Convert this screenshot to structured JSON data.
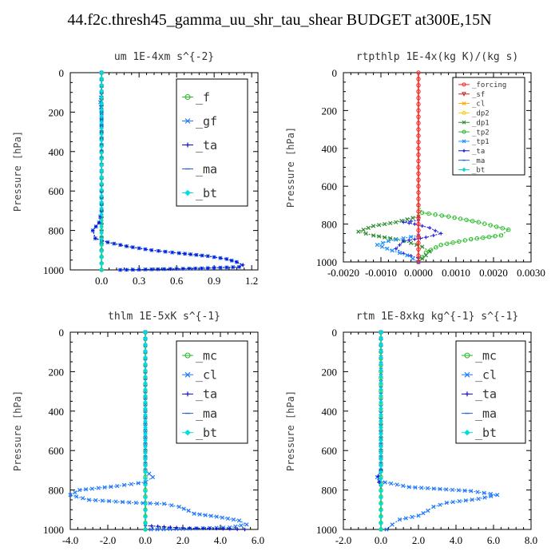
{
  "title": "44.f2c.thresh45_gamma_uu_shr_tau_shear  BUDGET at300E,15N",
  "chart_data": [
    {
      "type": "line",
      "title": "um   1E-4xm s^{-2}",
      "ylabel": "Pressure [hPa]",
      "xlim": [
        -0.25,
        1.25
      ],
      "ylim": [
        1000,
        0
      ],
      "xticks": [
        {
          "v": 0,
          "t": "0.0"
        },
        {
          "v": 0.3,
          "t": "0.3"
        },
        {
          "v": 0.6,
          "t": "0.6"
        },
        {
          "v": 0.9,
          "t": "0.9"
        },
        {
          "v": 1.2,
          "t": "1.2"
        }
      ],
      "yticks": [
        {
          "v": 0,
          "t": "0"
        },
        {
          "v": 200,
          "t": "200"
        },
        {
          "v": 400,
          "t": "400"
        },
        {
          "v": 600,
          "t": "600"
        },
        {
          "v": 800,
          "t": "800"
        },
        {
          "v": 1000,
          "t": "1000"
        }
      ],
      "legend_position": "top-right",
      "legend": [
        "_f",
        "_gf",
        "_ta",
        "_ma",
        "_bt"
      ],
      "series": [
        {
          "name": "_f",
          "color": "#22bb22",
          "points": [
            [
              0,
              0
            ],
            [
              0,
              100
            ],
            [
              0,
              200
            ],
            [
              0,
              300
            ],
            [
              0,
              400
            ],
            [
              0,
              500
            ],
            [
              0,
              600
            ],
            [
              0,
              700
            ],
            [
              0,
              800
            ],
            [
              0,
              900
            ],
            [
              0,
              1000
            ]
          ]
        },
        {
          "name": "_gf",
          "color": "#1e78ff",
          "points": [
            [
              0,
              0
            ],
            [
              0,
              100
            ],
            [
              -0.01,
              150
            ],
            [
              0,
              200
            ],
            [
              0,
              400
            ],
            [
              0,
              600
            ],
            [
              0,
              700
            ],
            [
              -0.02,
              760
            ],
            [
              -0.07,
              800
            ],
            [
              -0.05,
              840
            ],
            [
              0.05,
              860
            ],
            [
              0.2,
              880
            ],
            [
              0.4,
              900
            ],
            [
              0.62,
              915
            ],
            [
              0.85,
              930
            ],
            [
              1.0,
              945
            ],
            [
              1.08,
              960
            ],
            [
              1.12,
              975
            ],
            [
              1.1,
              985
            ],
            [
              0.8,
              992
            ],
            [
              0.5,
              996
            ],
            [
              0.15,
              1000
            ]
          ]
        },
        {
          "name": "_ta",
          "color": "#1010cc",
          "points": [
            [
              0,
              0
            ],
            [
              0,
              150
            ],
            [
              0,
              400
            ],
            [
              0,
              700
            ],
            [
              -0.02,
              760
            ],
            [
              -0.07,
              800
            ],
            [
              -0.05,
              840
            ],
            [
              0.05,
              860
            ],
            [
              0.2,
              880
            ],
            [
              0.4,
              900
            ],
            [
              0.62,
              915
            ],
            [
              0.85,
              930
            ],
            [
              1.0,
              945
            ],
            [
              1.08,
              960
            ],
            [
              1.13,
              975
            ],
            [
              1.1,
              985
            ],
            [
              0.8,
              992
            ],
            [
              0.5,
              996
            ],
            [
              0.15,
              1000
            ]
          ]
        },
        {
          "name": "_ma",
          "color": "#2a66c4",
          "points": [
            [
              0,
              0
            ],
            [
              0,
              500
            ],
            [
              0,
              1000
            ]
          ]
        },
        {
          "name": "_bt",
          "color": "#00dddd",
          "points": [
            [
              0,
              0
            ],
            [
              0,
              250
            ],
            [
              0,
              500
            ],
            [
              0,
              750
            ],
            [
              0,
              1000
            ]
          ]
        }
      ]
    },
    {
      "type": "line",
      "title": "rtpthlp   1E-4x(kg K)/(kg s)",
      "ylabel": "Pressure [hPa]",
      "xlim": [
        -0.002,
        0.003
      ],
      "ylim": [
        1000,
        0
      ],
      "xticks": [
        {
          "v": -0.002,
          "t": "-0.0020"
        },
        {
          "v": -0.001,
          "t": "-0.0010"
        },
        {
          "v": 0,
          "t": "0.0000"
        },
        {
          "v": 0.001,
          "t": "0.0010"
        },
        {
          "v": 0.002,
          "t": "0.0020"
        },
        {
          "v": 0.003,
          "t": "0.0030"
        }
      ],
      "yticks": [
        {
          "v": 0,
          "t": "0"
        },
        {
          "v": 200,
          "t": "200"
        },
        {
          "v": 400,
          "t": "400"
        },
        {
          "v": 600,
          "t": "600"
        },
        {
          "v": 800,
          "t": "800"
        },
        {
          "v": 1000,
          "t": "1000"
        }
      ],
      "legend_position": "top-right",
      "legend": [
        "_forcing",
        "_sf",
        "_cl",
        "_dp2",
        "_dp1",
        "_tp2",
        "_tp1",
        "_ta",
        "_ma",
        "_bt"
      ],
      "series": [
        {
          "name": "_tp2",
          "color": "#22bb22",
          "points": [
            [
              0,
              700
            ],
            [
              0.0001,
              740
            ],
            [
              0.0008,
              760
            ],
            [
              0.0016,
              790
            ],
            [
              0.0024,
              830
            ],
            [
              0.0022,
              860
            ],
            [
              0.0014,
              880
            ],
            [
              0.0006,
              910
            ],
            [
              0.0002,
              950
            ],
            [
              0,
              1000
            ]
          ]
        },
        {
          "name": "_dp1",
          "color": "#2e8b2e",
          "points": [
            [
              0,
              760
            ],
            [
              -0.0006,
              790
            ],
            [
              -0.0012,
              810
            ],
            [
              -0.0016,
              840
            ],
            [
              -0.0012,
              860
            ],
            [
              -0.0006,
              880
            ],
            [
              -0.0002,
              900
            ],
            [
              0.0001,
              920
            ],
            [
              0.0003,
              945
            ],
            [
              0.0002,
              965
            ],
            [
              0,
              1000
            ]
          ]
        },
        {
          "name": "_ta",
          "color": "#2222dd",
          "points": [
            [
              0,
              780
            ],
            [
              -0.0004,
              790
            ],
            [
              -0.0001,
              800
            ],
            [
              0.0003,
              820
            ],
            [
              0.0006,
              850
            ],
            [
              0.0002,
              870
            ],
            [
              -0.0004,
              890
            ],
            [
              -0.0006,
              930
            ],
            [
              -0.0004,
              955
            ],
            [
              0,
              980
            ],
            [
              0,
              1000
            ]
          ]
        },
        {
          "name": "_tp1",
          "color": "#1e90ff",
          "points": [
            [
              0,
              860
            ],
            [
              -0.0004,
              875
            ],
            [
              -0.0008,
              890
            ],
            [
              -0.0011,
              910
            ],
            [
              -0.0007,
              940
            ],
            [
              -0.0003,
              965
            ],
            [
              0,
              1000
            ]
          ]
        },
        {
          "name": "_forcing",
          "color": "#ff2020",
          "points": [
            [
              0,
              0
            ],
            [
              0,
              200
            ],
            [
              0,
              400
            ],
            [
              0,
              600
            ],
            [
              0,
              800
            ],
            [
              0,
              1000
            ]
          ]
        }
      ]
    },
    {
      "type": "line",
      "title": "thlm   1E-5xK s^{-1}",
      "ylabel": "Pressure [hPa]",
      "xlim": [
        -4.0,
        6.0
      ],
      "ylim": [
        1000,
        0
      ],
      "xticks": [
        {
          "v": -4,
          "t": "-4.0"
        },
        {
          "v": -2,
          "t": "-2.0"
        },
        {
          "v": 0,
          "t": "0.0"
        },
        {
          "v": 2,
          "t": "2.0"
        },
        {
          "v": 4,
          "t": "4.0"
        },
        {
          "v": 6,
          "t": "6.0"
        }
      ],
      "yticks": [
        {
          "v": 0,
          "t": "0"
        },
        {
          "v": 200,
          "t": "200"
        },
        {
          "v": 400,
          "t": "400"
        },
        {
          "v": 600,
          "t": "600"
        },
        {
          "v": 800,
          "t": "800"
        },
        {
          "v": 1000,
          "t": "1000"
        }
      ],
      "legend_position": "top-right",
      "legend": [
        "_mc",
        "_cl",
        "_ta",
        "_ma",
        "_bt"
      ],
      "series": [
        {
          "name": "_mc",
          "color": "#22bb22",
          "points": [
            [
              0,
              0
            ],
            [
              0,
              200
            ],
            [
              0,
              400
            ],
            [
              0,
              600
            ],
            [
              0,
              800
            ],
            [
              0,
              1000
            ]
          ]
        },
        {
          "name": "_cl",
          "color": "#1e78ff",
          "points": [
            [
              0,
              0
            ],
            [
              0,
              500
            ],
            [
              0,
              700
            ],
            [
              0.4,
              735
            ],
            [
              0,
              760
            ],
            [
              -1.5,
              780
            ],
            [
              -3.5,
              800
            ],
            [
              -4.0,
              825
            ],
            [
              -3.0,
              850
            ],
            [
              -0.5,
              865
            ],
            [
              1.0,
              870
            ],
            [
              1.8,
              885
            ],
            [
              2.3,
              905
            ],
            [
              2.6,
              920
            ],
            [
              3.8,
              935
            ],
            [
              5.0,
              955
            ],
            [
              5.4,
              975
            ],
            [
              4.5,
              990
            ],
            [
              2.0,
              997
            ],
            [
              0.3,
              1000
            ]
          ]
        },
        {
          "name": "_ta",
          "color": "#1010cc",
          "points": [
            [
              0,
              980
            ],
            [
              2.0,
              993
            ],
            [
              4.5,
              997
            ],
            [
              5.3,
              1000
            ]
          ]
        },
        {
          "name": "_ma",
          "color": "#2a66c4",
          "points": [
            [
              0,
              0
            ],
            [
              0,
              1000
            ]
          ]
        },
        {
          "name": "_bt",
          "color": "#00dddd",
          "points": [
            [
              0,
              0
            ],
            [
              0,
              1000
            ]
          ]
        }
      ]
    },
    {
      "type": "line",
      "title": "rtm   1E-8xkg kg^{-1} s^{-1}",
      "ylabel": "Pressure [hPa]",
      "xlim": [
        -2.0,
        8.0
      ],
      "ylim": [
        1000,
        0
      ],
      "xticks": [
        {
          "v": -2,
          "t": "-2.0"
        },
        {
          "v": 0,
          "t": "0.0"
        },
        {
          "v": 2,
          "t": "2.0"
        },
        {
          "v": 4,
          "t": "4.0"
        },
        {
          "v": 6,
          "t": "6.0"
        },
        {
          "v": 8,
          "t": "8.0"
        }
      ],
      "yticks": [
        {
          "v": 0,
          "t": "0"
        },
        {
          "v": 200,
          "t": "200"
        },
        {
          "v": 400,
          "t": "400"
        },
        {
          "v": 600,
          "t": "600"
        },
        {
          "v": 800,
          "t": "800"
        },
        {
          "v": 1000,
          "t": "1000"
        }
      ],
      "legend_position": "top-right",
      "legend": [
        "_mc",
        "_cl",
        "_ta",
        "_ma",
        "_bt"
      ],
      "series": [
        {
          "name": "_mc",
          "color": "#22bb22",
          "points": [
            [
              0,
              0
            ],
            [
              0,
              200
            ],
            [
              0,
              400
            ],
            [
              0,
              600
            ],
            [
              0,
              800
            ],
            [
              0,
              1000
            ]
          ]
        },
        {
          "name": "_cl",
          "color": "#1e78ff",
          "points": [
            [
              0,
              0
            ],
            [
              0,
              600
            ],
            [
              0,
              700
            ],
            [
              -0.2,
              735
            ],
            [
              -0.1,
              755
            ],
            [
              1.5,
              785
            ],
            [
              4.8,
              805
            ],
            [
              6.2,
              825
            ],
            [
              5.2,
              845
            ],
            [
              3.5,
              865
            ],
            [
              2.8,
              885
            ],
            [
              2.5,
              905
            ],
            [
              2.0,
              930
            ],
            [
              1.0,
              950
            ],
            [
              0.6,
              975
            ],
            [
              0.3,
              1000
            ]
          ]
        },
        {
          "name": "_ta",
          "color": "#1010cc",
          "points": [
            [
              0,
              700
            ],
            [
              -0.15,
              730
            ],
            [
              -0.1,
              760
            ],
            [
              0,
              780
            ]
          ]
        },
        {
          "name": "_ma",
          "color": "#2a66c4",
          "points": [
            [
              0,
              0
            ],
            [
              0,
              1000
            ]
          ]
        },
        {
          "name": "_bt",
          "color": "#00dddd",
          "points": [
            [
              0,
              0
            ],
            [
              0,
              1000
            ]
          ]
        }
      ]
    }
  ]
}
